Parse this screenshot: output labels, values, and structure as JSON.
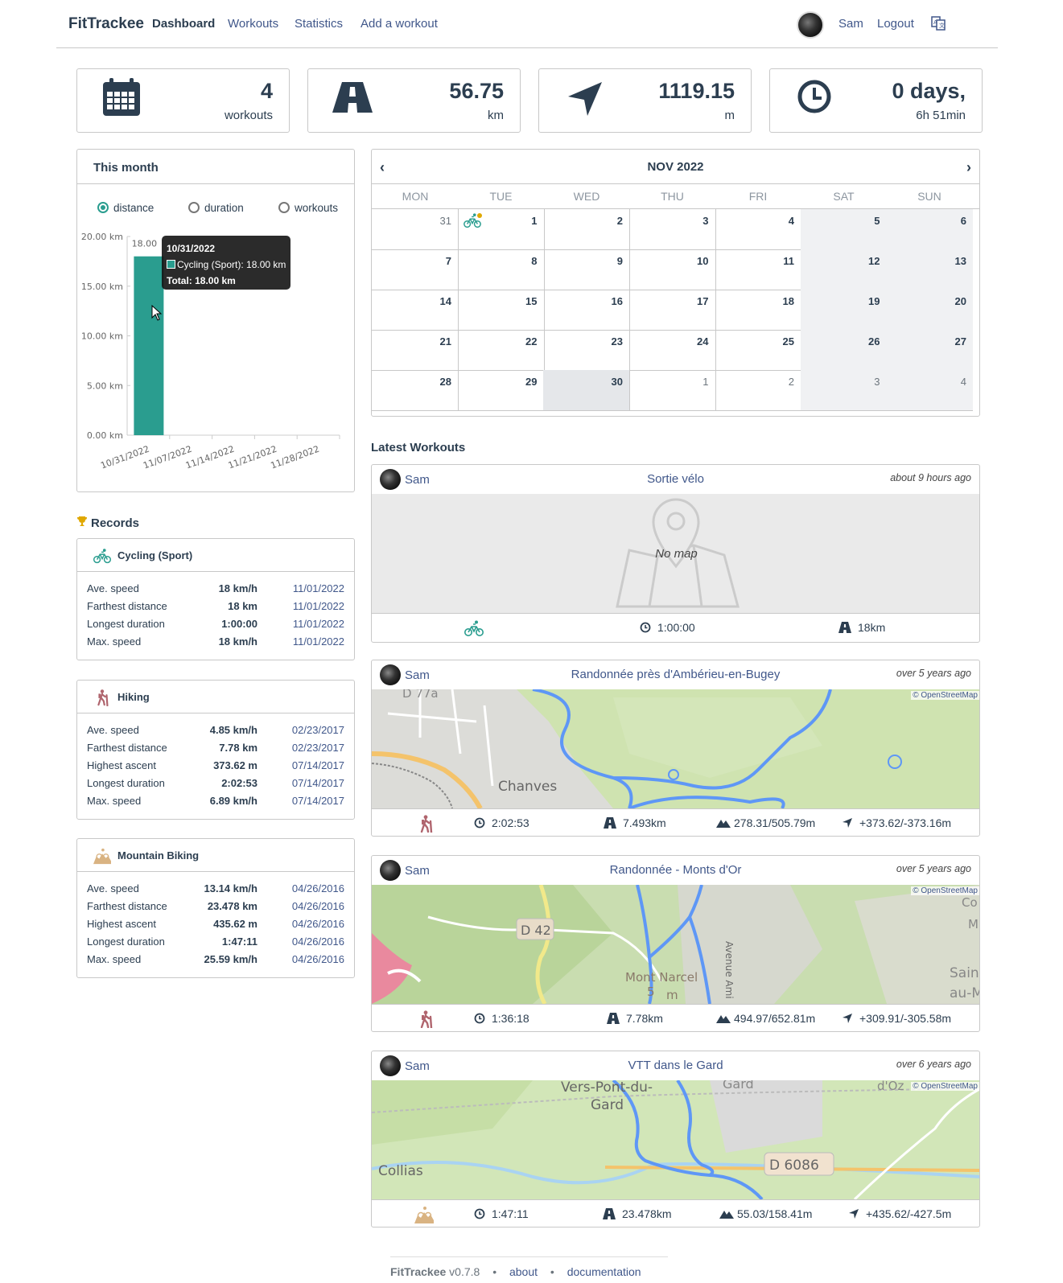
{
  "nav": {
    "brand": "FitTrackee",
    "dashboard": "Dashboard",
    "workouts": "Workouts",
    "statistics": "Statistics",
    "add_workout": "Add a workout",
    "user": "Sam",
    "logout": "Logout",
    "lang_icon": "language-icon"
  },
  "stats": [
    {
      "icon": "calendar-icon",
      "value": "4",
      "unit": "workouts"
    },
    {
      "icon": "road-icon",
      "value": "56.75",
      "unit": "km"
    },
    {
      "icon": "location-arrow-icon",
      "value": "1119.15",
      "unit": "m"
    },
    {
      "icon": "clock-icon",
      "value": "0 days,",
      "unit": "6h 51min"
    }
  ],
  "month": {
    "title": "This month",
    "options": [
      "distance",
      "duration",
      "workouts"
    ],
    "selected": "distance",
    "tooltip": {
      "date": "10/31/2022",
      "line": "Cycling (Sport): 18.00 km",
      "total": "Total: 18.00 km"
    }
  },
  "chart_data": {
    "type": "bar",
    "categories": [
      "10/31/2022",
      "11/07/2022",
      "11/14/2022",
      "11/21/2022",
      "11/28/2022"
    ],
    "series": [
      {
        "name": "Cycling (Sport)",
        "values": [
          18,
          0,
          0,
          0,
          0
        ],
        "color": "#2a9d8f"
      }
    ],
    "data_label": "18.00",
    "y_ticks": [
      "0.00 km",
      "5.00 km",
      "10.00 km",
      "15.00 km",
      "20.00 km"
    ],
    "ylim": [
      0,
      20
    ],
    "grid": false
  },
  "records": {
    "title": "Records",
    "sports": [
      {
        "name": "Cycling (Sport)",
        "icon": "cycling-icon",
        "color": "#2a9d8f",
        "rows": [
          {
            "label": "Ave. speed",
            "value": "18 km/h",
            "date": "11/01/2022"
          },
          {
            "label": "Farthest distance",
            "value": "18 km",
            "date": "11/01/2022"
          },
          {
            "label": "Longest duration",
            "value": "1:00:00",
            "date": "11/01/2022"
          },
          {
            "label": "Max. speed",
            "value": "18 km/h",
            "date": "11/01/2022"
          }
        ]
      },
      {
        "name": "Hiking",
        "icon": "hiking-icon",
        "color": "#b0656e",
        "rows": [
          {
            "label": "Ave. speed",
            "value": "4.85 km/h",
            "date": "02/23/2017"
          },
          {
            "label": "Farthest distance",
            "value": "7.78 km",
            "date": "02/23/2017"
          },
          {
            "label": "Highest ascent",
            "value": "373.62 m",
            "date": "07/14/2017"
          },
          {
            "label": "Longest duration",
            "value": "2:02:53",
            "date": "07/14/2017"
          },
          {
            "label": "Max. speed",
            "value": "6.89 km/h",
            "date": "07/14/2017"
          }
        ]
      },
      {
        "name": "Mountain Biking",
        "icon": "mountain-biking-icon",
        "color": "#d9b382",
        "rows": [
          {
            "label": "Ave. speed",
            "value": "13.14 km/h",
            "date": "04/26/2016"
          },
          {
            "label": "Farthest distance",
            "value": "23.478 km",
            "date": "04/26/2016"
          },
          {
            "label": "Highest ascent",
            "value": "435.62 m",
            "date": "04/26/2016"
          },
          {
            "label": "Longest duration",
            "value": "1:47:11",
            "date": "04/26/2016"
          },
          {
            "label": "Max. speed",
            "value": "25.59 km/h",
            "date": "04/26/2016"
          }
        ]
      }
    ]
  },
  "calendar": {
    "title": "NOV 2022",
    "days": [
      "MON",
      "TUE",
      "WED",
      "THU",
      "FRI",
      "SAT",
      "SUN"
    ],
    "weeks": [
      [
        "31",
        "1",
        "2",
        "3",
        "4",
        "5",
        "6"
      ],
      [
        "7",
        "8",
        "9",
        "10",
        "11",
        "12",
        "13"
      ],
      [
        "14",
        "15",
        "16",
        "17",
        "18",
        "19",
        "20"
      ],
      [
        "21",
        "22",
        "23",
        "24",
        "25",
        "26",
        "27"
      ],
      [
        "28",
        "29",
        "30",
        "1",
        "2",
        "3",
        "4"
      ]
    ]
  },
  "latest": {
    "title": "Latest Workouts",
    "no_map": "No map",
    "osm": "© OpenStreetMap",
    "workouts": [
      {
        "user": "Sam",
        "title": "Sortie vélo",
        "ago": "about 9 hours ago",
        "sport": "cycling-icon",
        "duration": "1:00:00",
        "distance": "18km"
      },
      {
        "user": "Sam",
        "title": "Randonnée près d'Ambérieu-en-Bugey",
        "ago": "over 5 years ago",
        "sport": "hiking-icon",
        "duration": "2:02:53",
        "distance": "7.493km",
        "elevation": "278.31/505.79m",
        "ascent": "+373.62/-373.16m",
        "map_labels": [
          "Chanves",
          "D 77a"
        ]
      },
      {
        "user": "Sam",
        "title": "Randonnée - Monts d'Or",
        "ago": "over 5 years ago",
        "sport": "hiking-icon",
        "duration": "1:36:18",
        "distance": "7.78km",
        "elevation": "494.97/652.81m",
        "ascent": "+309.91/-305.58m",
        "map_labels": [
          "D 42",
          "Mont Narcel",
          "Avenue Ami",
          "Saint",
          "au-M",
          "Co",
          "M",
          "5",
          "m"
        ]
      },
      {
        "user": "Sam",
        "title": "VTT dans le Gard",
        "ago": "over 6 years ago",
        "sport": "mountain-biking-icon",
        "duration": "1:47:11",
        "distance": "23.478km",
        "elevation": "55.03/158.41m",
        "ascent": "+435.62/-427.5m",
        "map_labels": [
          "Vers-Pont-du-",
          "Gard",
          "Collias",
          "D 6086",
          "Gard",
          "d'Oz"
        ]
      }
    ]
  },
  "footer": {
    "brand": "FitTrackee",
    "version": "v0.7.8",
    "about": "about",
    "documentation": "documentation",
    "sep": "•"
  }
}
